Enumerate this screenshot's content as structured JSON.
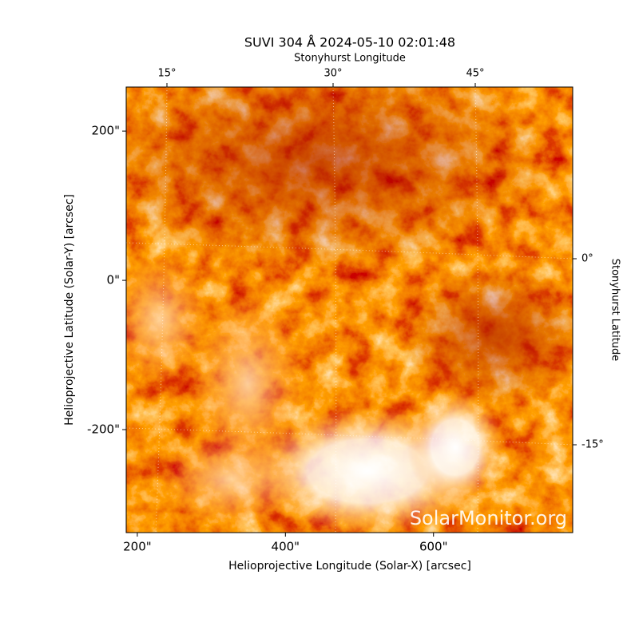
{
  "chart_data": {
    "type": "image",
    "title": "SUVI 304 Å 2024-05-10 02:01:48",
    "xlabel": "Helioprojective Longitude (Solar-X) [arcsec]",
    "ylabel": "Helioprojective Latitude (Solar-Y) [arcsec]",
    "xlim": [
      185,
      788
    ],
    "ylim": [
      -338,
      259
    ],
    "xticks": [
      {
        "value": 200,
        "label": "200\""
      },
      {
        "value": 400,
        "label": "400\""
      },
      {
        "value": 600,
        "label": "600\""
      }
    ],
    "yticks": [
      {
        "value": -200,
        "label": "-200\""
      },
      {
        "value": 0,
        "label": "0\""
      },
      {
        "value": 200,
        "label": "200\""
      }
    ],
    "top_axis_label": "Stonyhurst Longitude",
    "top_ticks": [
      {
        "value": 15,
        "label": "15°"
      },
      {
        "value": 30,
        "label": "30°"
      },
      {
        "value": 45,
        "label": "45°"
      }
    ],
    "right_axis_label": "Stonyhurst Latitude",
    "right_ticks": [
      {
        "value": 0,
        "label": "0°"
      },
      {
        "value": -15,
        "label": "-15°"
      }
    ],
    "watermark": "SolarMonitor.org"
  }
}
